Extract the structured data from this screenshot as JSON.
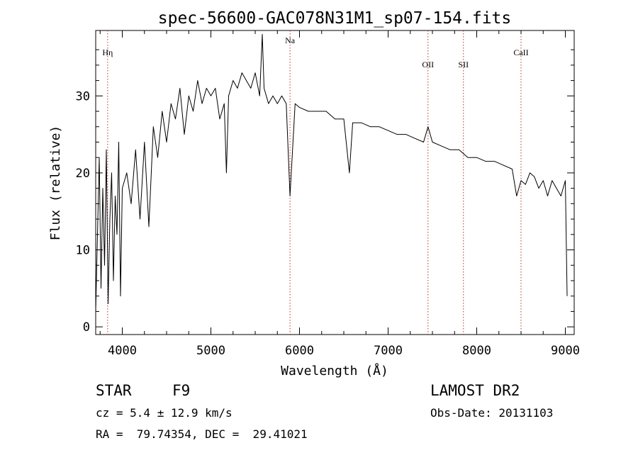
{
  "chart_data": {
    "type": "line",
    "title": "spec-56600-GAC078N31M1_sp07-154.fits",
    "xlabel": "Wavelength (Å)",
    "ylabel": "Flux (relative)",
    "xlim": [
      3700,
      9100
    ],
    "ylim": [
      -1,
      38.5
    ],
    "x_ticks": [
      4000,
      5000,
      6000,
      7000,
      8000,
      9000
    ],
    "y_ticks": [
      0,
      10,
      20,
      30
    ],
    "grid": false,
    "series": [
      {
        "color": "#000000",
        "x": [
          3700,
          3720,
          3740,
          3760,
          3780,
          3800,
          3820,
          3840,
          3860,
          3880,
          3900,
          3920,
          3940,
          3960,
          3980,
          4000,
          4050,
          4100,
          4150,
          4200,
          4250,
          4300,
          4350,
          4400,
          4450,
          4500,
          4550,
          4600,
          4650,
          4700,
          4750,
          4800,
          4850,
          4900,
          4950,
          5000,
          5050,
          5100,
          5150,
          5175,
          5200,
          5250,
          5300,
          5350,
          5400,
          5450,
          5500,
          5550,
          5580,
          5600,
          5650,
          5700,
          5750,
          5800,
          5850,
          5893,
          5950,
          6000,
          6100,
          6200,
          6300,
          6400,
          6500,
          6563,
          6600,
          6700,
          6800,
          6900,
          7000,
          7100,
          7200,
          7300,
          7400,
          7450,
          7500,
          7600,
          7700,
          7800,
          7900,
          8000,
          8100,
          8200,
          8300,
          8400,
          8450,
          8500,
          8550,
          8600,
          8650,
          8700,
          8750,
          8800,
          8850,
          8900,
          8950,
          9000,
          9020
        ],
        "y": [
          2,
          12,
          22,
          5,
          18,
          8,
          23,
          3,
          14,
          20,
          6,
          17,
          12,
          24,
          4,
          18,
          20,
          16,
          23,
          14,
          24,
          13,
          26,
          22,
          28,
          24,
          29,
          27,
          31,
          25,
          30,
          28,
          32,
          29,
          31,
          30,
          31,
          27,
          29,
          20,
          30,
          32,
          31,
          33,
          32,
          31,
          33,
          30,
          38,
          31,
          29,
          30,
          29,
          30,
          29,
          17,
          29,
          28.5,
          28,
          28,
          28,
          27,
          27,
          20,
          26.5,
          26.5,
          26,
          26,
          25.5,
          25,
          25,
          24.5,
          24,
          26,
          24,
          23.5,
          23,
          23,
          22,
          22,
          21.5,
          21.5,
          21,
          20.5,
          17,
          19,
          18.5,
          20,
          19.5,
          18,
          19,
          17,
          19,
          18,
          17,
          19,
          4
        ]
      }
    ],
    "annotations": [
      {
        "label": "Hη",
        "x": 3835
      },
      {
        "label": "Na",
        "x": 5893
      },
      {
        "label": "OII",
        "x": 7450
      },
      {
        "label": "SII",
        "x": 7850
      },
      {
        "label": "CaII",
        "x": 8500
      }
    ]
  },
  "info": {
    "object_type": "STAR",
    "subclass": "F9",
    "survey": "LAMOST DR2",
    "cz": "cz = 5.4 ± 12.9 km/s",
    "obs_date": "Obs-Date: 20131103",
    "coords": "RA =  79.74354, DEC =  29.41021"
  }
}
